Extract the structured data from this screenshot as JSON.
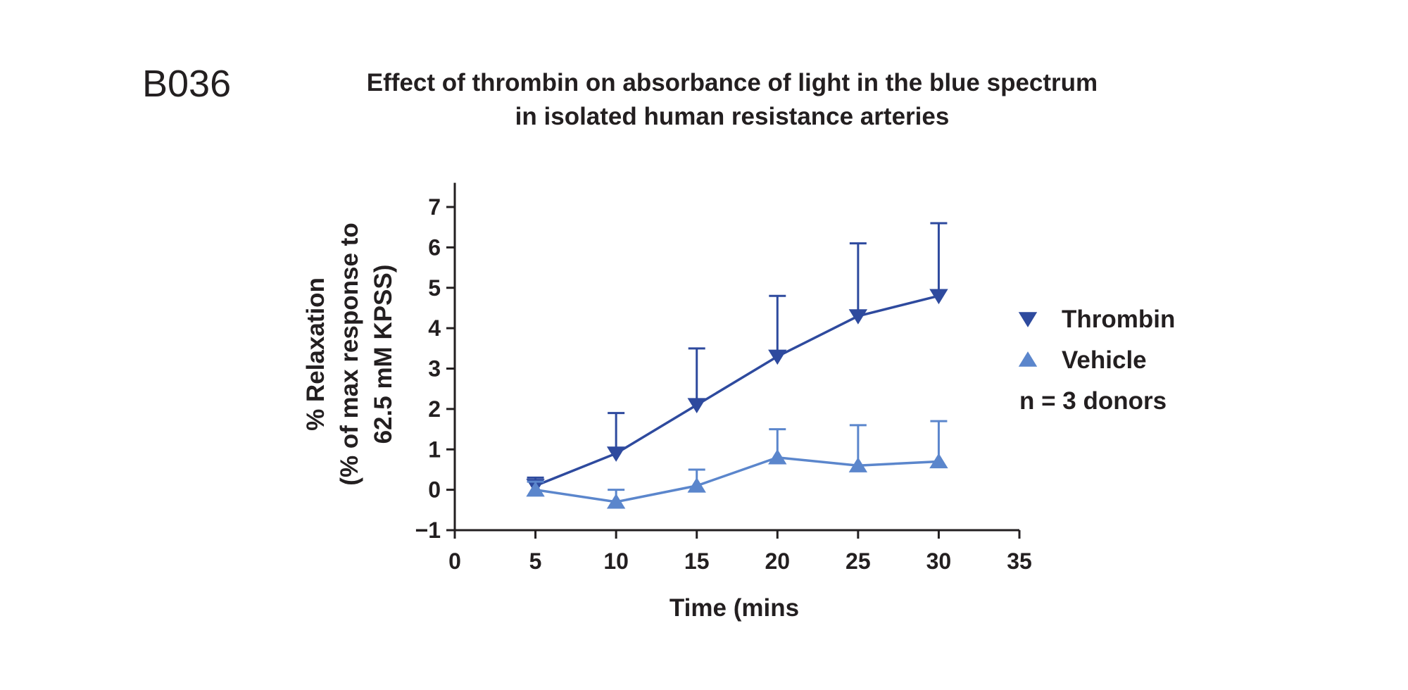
{
  "panel_label": "B036",
  "title_lines": [
    "Effect of thrombin on absorbance of light in the blue spectrum",
    "in isolated human resistance arteries"
  ],
  "colors": {
    "thrombin": "#2e4a9e",
    "vehicle": "#5b86cc",
    "axis": "#231f20"
  },
  "chart_data": {
    "type": "line",
    "title": "Effect of thrombin on absorbance of light in the blue spectrum in isolated human resistance arteries",
    "xlabel": "Time (mins",
    "ylabel_lines": [
      "% Relaxation",
      "(% of max response to",
      "62.5 mM KPSS)"
    ],
    "xlim": [
      0,
      35
    ],
    "ylim": [
      -1,
      7.6
    ],
    "xticks": [
      0,
      5,
      10,
      15,
      20,
      25,
      30,
      35
    ],
    "yticks": [
      -1,
      0,
      1,
      2,
      3,
      4,
      5,
      6,
      7
    ],
    "ytick_labels": [
      "−1",
      "0",
      "1",
      "2",
      "3",
      "4",
      "5",
      "6",
      "7"
    ],
    "grid": false,
    "legend_position": "right",
    "series": [
      {
        "name": "Thrombin",
        "key": "thrombin",
        "marker": "triangle-down",
        "x": [
          5,
          10,
          15,
          20,
          25,
          30
        ],
        "y": [
          0.1,
          0.9,
          2.1,
          3.3,
          4.3,
          4.8
        ],
        "error_upper": [
          0.3,
          1.9,
          3.5,
          4.8,
          6.1,
          6.6
        ]
      },
      {
        "name": "Vehicle",
        "key": "vehicle",
        "marker": "triangle-up",
        "x": [
          5,
          10,
          15,
          20,
          25,
          30
        ],
        "y": [
          0.0,
          -0.3,
          0.1,
          0.8,
          0.6,
          0.7
        ],
        "error_upper": [
          0.2,
          0.0,
          0.5,
          1.5,
          1.6,
          1.7
        ]
      }
    ],
    "legend_note": "n = 3 donors"
  }
}
